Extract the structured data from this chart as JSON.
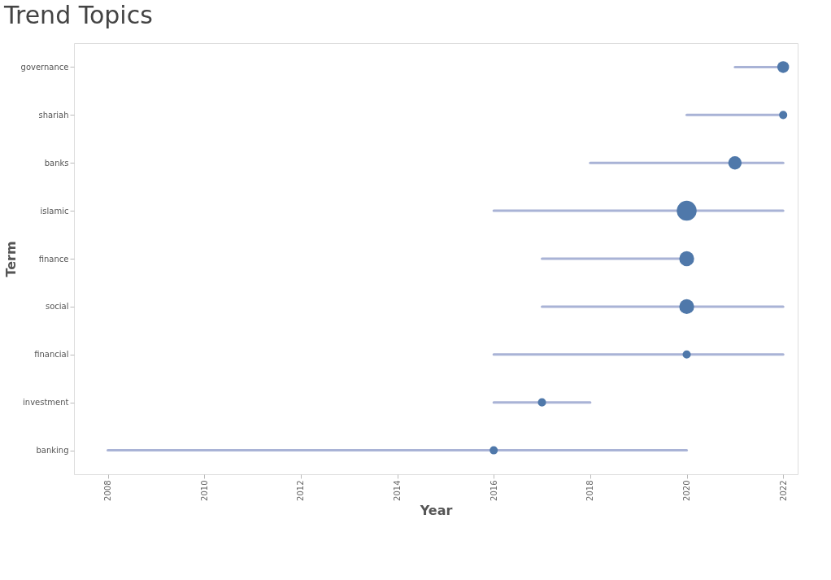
{
  "chart_data": {
    "type": "scatter",
    "title": "Trend Topics",
    "xlabel": "Year",
    "ylabel": "Term",
    "orientation": "horizontal",
    "categories": [
      "governance",
      "shariah",
      "banks",
      "islamic",
      "finance",
      "social",
      "financial",
      "investment",
      "banking"
    ],
    "series": [
      {
        "color": "#4f78aa",
        "values": [
          2022,
          2022,
          2021,
          2020,
          2020,
          2020,
          2020,
          2017,
          2016
        ],
        "errors": [
          [
            2021,
            2022
          ],
          [
            2020,
            2022
          ],
          [
            2018,
            2022
          ],
          [
            2016,
            2022
          ],
          [
            2017,
            2020
          ],
          [
            2017,
            2022
          ],
          [
            2016,
            2022
          ],
          [
            2016,
            2018
          ],
          [
            2008,
            2020
          ]
        ],
        "sizes": [
          0.35,
          0.17,
          0.45,
          1,
          0.56,
          0.56,
          0.17,
          0.17,
          0.17
        ]
      }
    ],
    "xlim": [
      2007.3,
      2022.3
    ],
    "xticks": [
      2008,
      2010,
      2012,
      2014,
      2016,
      2018,
      2020,
      2022
    ],
    "grid": false
  }
}
